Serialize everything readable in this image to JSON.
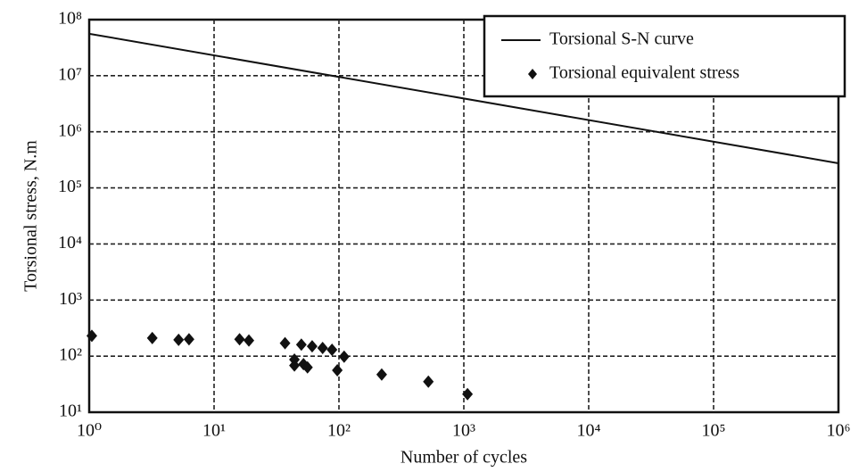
{
  "chart_data": {
    "type": "line",
    "xlabel": "Number of cycles",
    "ylabel": "Torsional stress, N.m",
    "xscale": "log",
    "yscale": "log",
    "xlim": [
      1,
      1000000
    ],
    "ylim": [
      10,
      100000000
    ],
    "xticks": [
      {
        "value": 1,
        "label": "10⁰"
      },
      {
        "value": 10,
        "label": "10¹"
      },
      {
        "value": 100,
        "label": "10²"
      },
      {
        "value": 1000,
        "label": "10³"
      },
      {
        "value": 10000,
        "label": "10⁴"
      },
      {
        "value": 100000,
        "label": "10⁵"
      },
      {
        "value": 1000000,
        "label": "10⁶"
      }
    ],
    "yticks": [
      {
        "value": 10,
        "label": "10¹"
      },
      {
        "value": 100,
        "label": "10²"
      },
      {
        "value": 1000,
        "label": "10³"
      },
      {
        "value": 10000,
        "label": "10⁴"
      },
      {
        "value": 100000,
        "label": "10⁵"
      },
      {
        "value": 1000000,
        "label": "10⁶"
      },
      {
        "value": 10000000,
        "label": "10⁷"
      },
      {
        "value": 100000000,
        "label": "10⁸"
      }
    ],
    "grid": true,
    "legend": "upper right",
    "series": [
      {
        "name": "Torsional S-N curve",
        "type": "line",
        "color": "#111111",
        "x": [
          1,
          1000000
        ],
        "values": [
          56000000,
          275000
        ]
      },
      {
        "name": "Torsional equivalent stress",
        "type": "scatter",
        "color": "#111111",
        "x": [
          1.05,
          3.2,
          5.2,
          6.3,
          16,
          19,
          37,
          50,
          61,
          74,
          88,
          110,
          44,
          52,
          44,
          56,
          97,
          220,
          520,
          1070
        ],
        "values": [
          230,
          210,
          195,
          200,
          200,
          190,
          170,
          160,
          150,
          140,
          130,
          98,
          87,
          72,
          68,
          63,
          56,
          47,
          35,
          21
        ]
      }
    ]
  }
}
